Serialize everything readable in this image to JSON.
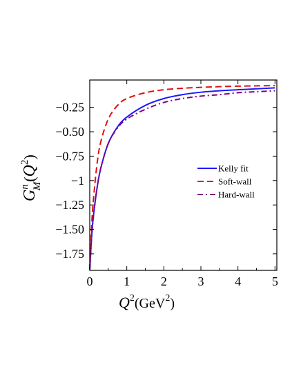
{
  "chart_data": {
    "type": "line",
    "title": "",
    "xlabel": {
      "q": "Q",
      "sup_x": "2",
      "unit_open": "(GeV",
      "unit_sup": "2",
      "unit_close": ")"
    },
    "ylabel": {
      "g": "G",
      "sup": "n",
      "sub": "M",
      "open": "(",
      "q": "Q",
      "q_sup": "2",
      "close": ")"
    },
    "xlim": [
      0,
      5.05
    ],
    "ylim": [
      -1.92,
      0.03
    ],
    "x_ticks": [
      {
        "value": 0,
        "label": "0"
      },
      {
        "value": 1,
        "label": "1"
      },
      {
        "value": 2,
        "label": "2"
      },
      {
        "value": 3,
        "label": "3"
      },
      {
        "value": 4,
        "label": "4"
      },
      {
        "value": 5,
        "label": "5"
      }
    ],
    "y_ticks": [
      {
        "value": -0.25,
        "label": "−0.25"
      },
      {
        "value": -0.5,
        "label": "−0.50"
      },
      {
        "value": -0.75,
        "label": "−0.75"
      },
      {
        "value": -1.0,
        "label": "−1"
      },
      {
        "value": -1.25,
        "label": "−1.25"
      },
      {
        "value": -1.5,
        "label": "−1.50"
      },
      {
        "value": -1.75,
        "label": "−1.75"
      }
    ],
    "grid": false,
    "legend_position": "middle-right",
    "series": [
      {
        "name": "Kelly fit",
        "color": "#1a1aff",
        "dash": "solid",
        "x": [
          0.0,
          0.05,
          0.1,
          0.2,
          0.3,
          0.5,
          0.75,
          1.0,
          1.5,
          2.0,
          2.5,
          3.0,
          3.5,
          4.0,
          4.5,
          5.0
        ],
        "y": [
          -1.913,
          -1.58,
          -1.36,
          -1.07,
          -0.87,
          -0.62,
          -0.45,
          -0.35,
          -0.23,
          -0.16,
          -0.12,
          -0.095,
          -0.08,
          -0.07,
          -0.06,
          -0.05
        ]
      },
      {
        "name": "Soft-wall",
        "color": "#e0100f",
        "dash": "dashed",
        "x": [
          0.0,
          0.05,
          0.1,
          0.2,
          0.3,
          0.5,
          0.75,
          1.0,
          1.5,
          2.0,
          2.5,
          3.0,
          3.5,
          4.0,
          4.5,
          5.0
        ],
        "y": [
          -1.913,
          -1.47,
          -1.19,
          -0.82,
          -0.6,
          -0.37,
          -0.23,
          -0.16,
          -0.1,
          -0.07,
          -0.055,
          -0.045,
          -0.038,
          -0.033,
          -0.03,
          -0.027
        ]
      },
      {
        "name": "Hard-wall",
        "color": "#800080",
        "dash": "dashdot",
        "x": [
          0.0,
          0.05,
          0.1,
          0.2,
          0.3,
          0.5,
          0.75,
          1.0,
          1.5,
          2.0,
          2.5,
          3.0,
          3.5,
          4.0,
          4.5,
          5.0
        ],
        "y": [
          -1.913,
          -1.58,
          -1.36,
          -1.07,
          -0.87,
          -0.62,
          -0.46,
          -0.37,
          -0.27,
          -0.2,
          -0.16,
          -0.135,
          -0.12,
          -0.1,
          -0.09,
          -0.08
        ]
      }
    ]
  }
}
